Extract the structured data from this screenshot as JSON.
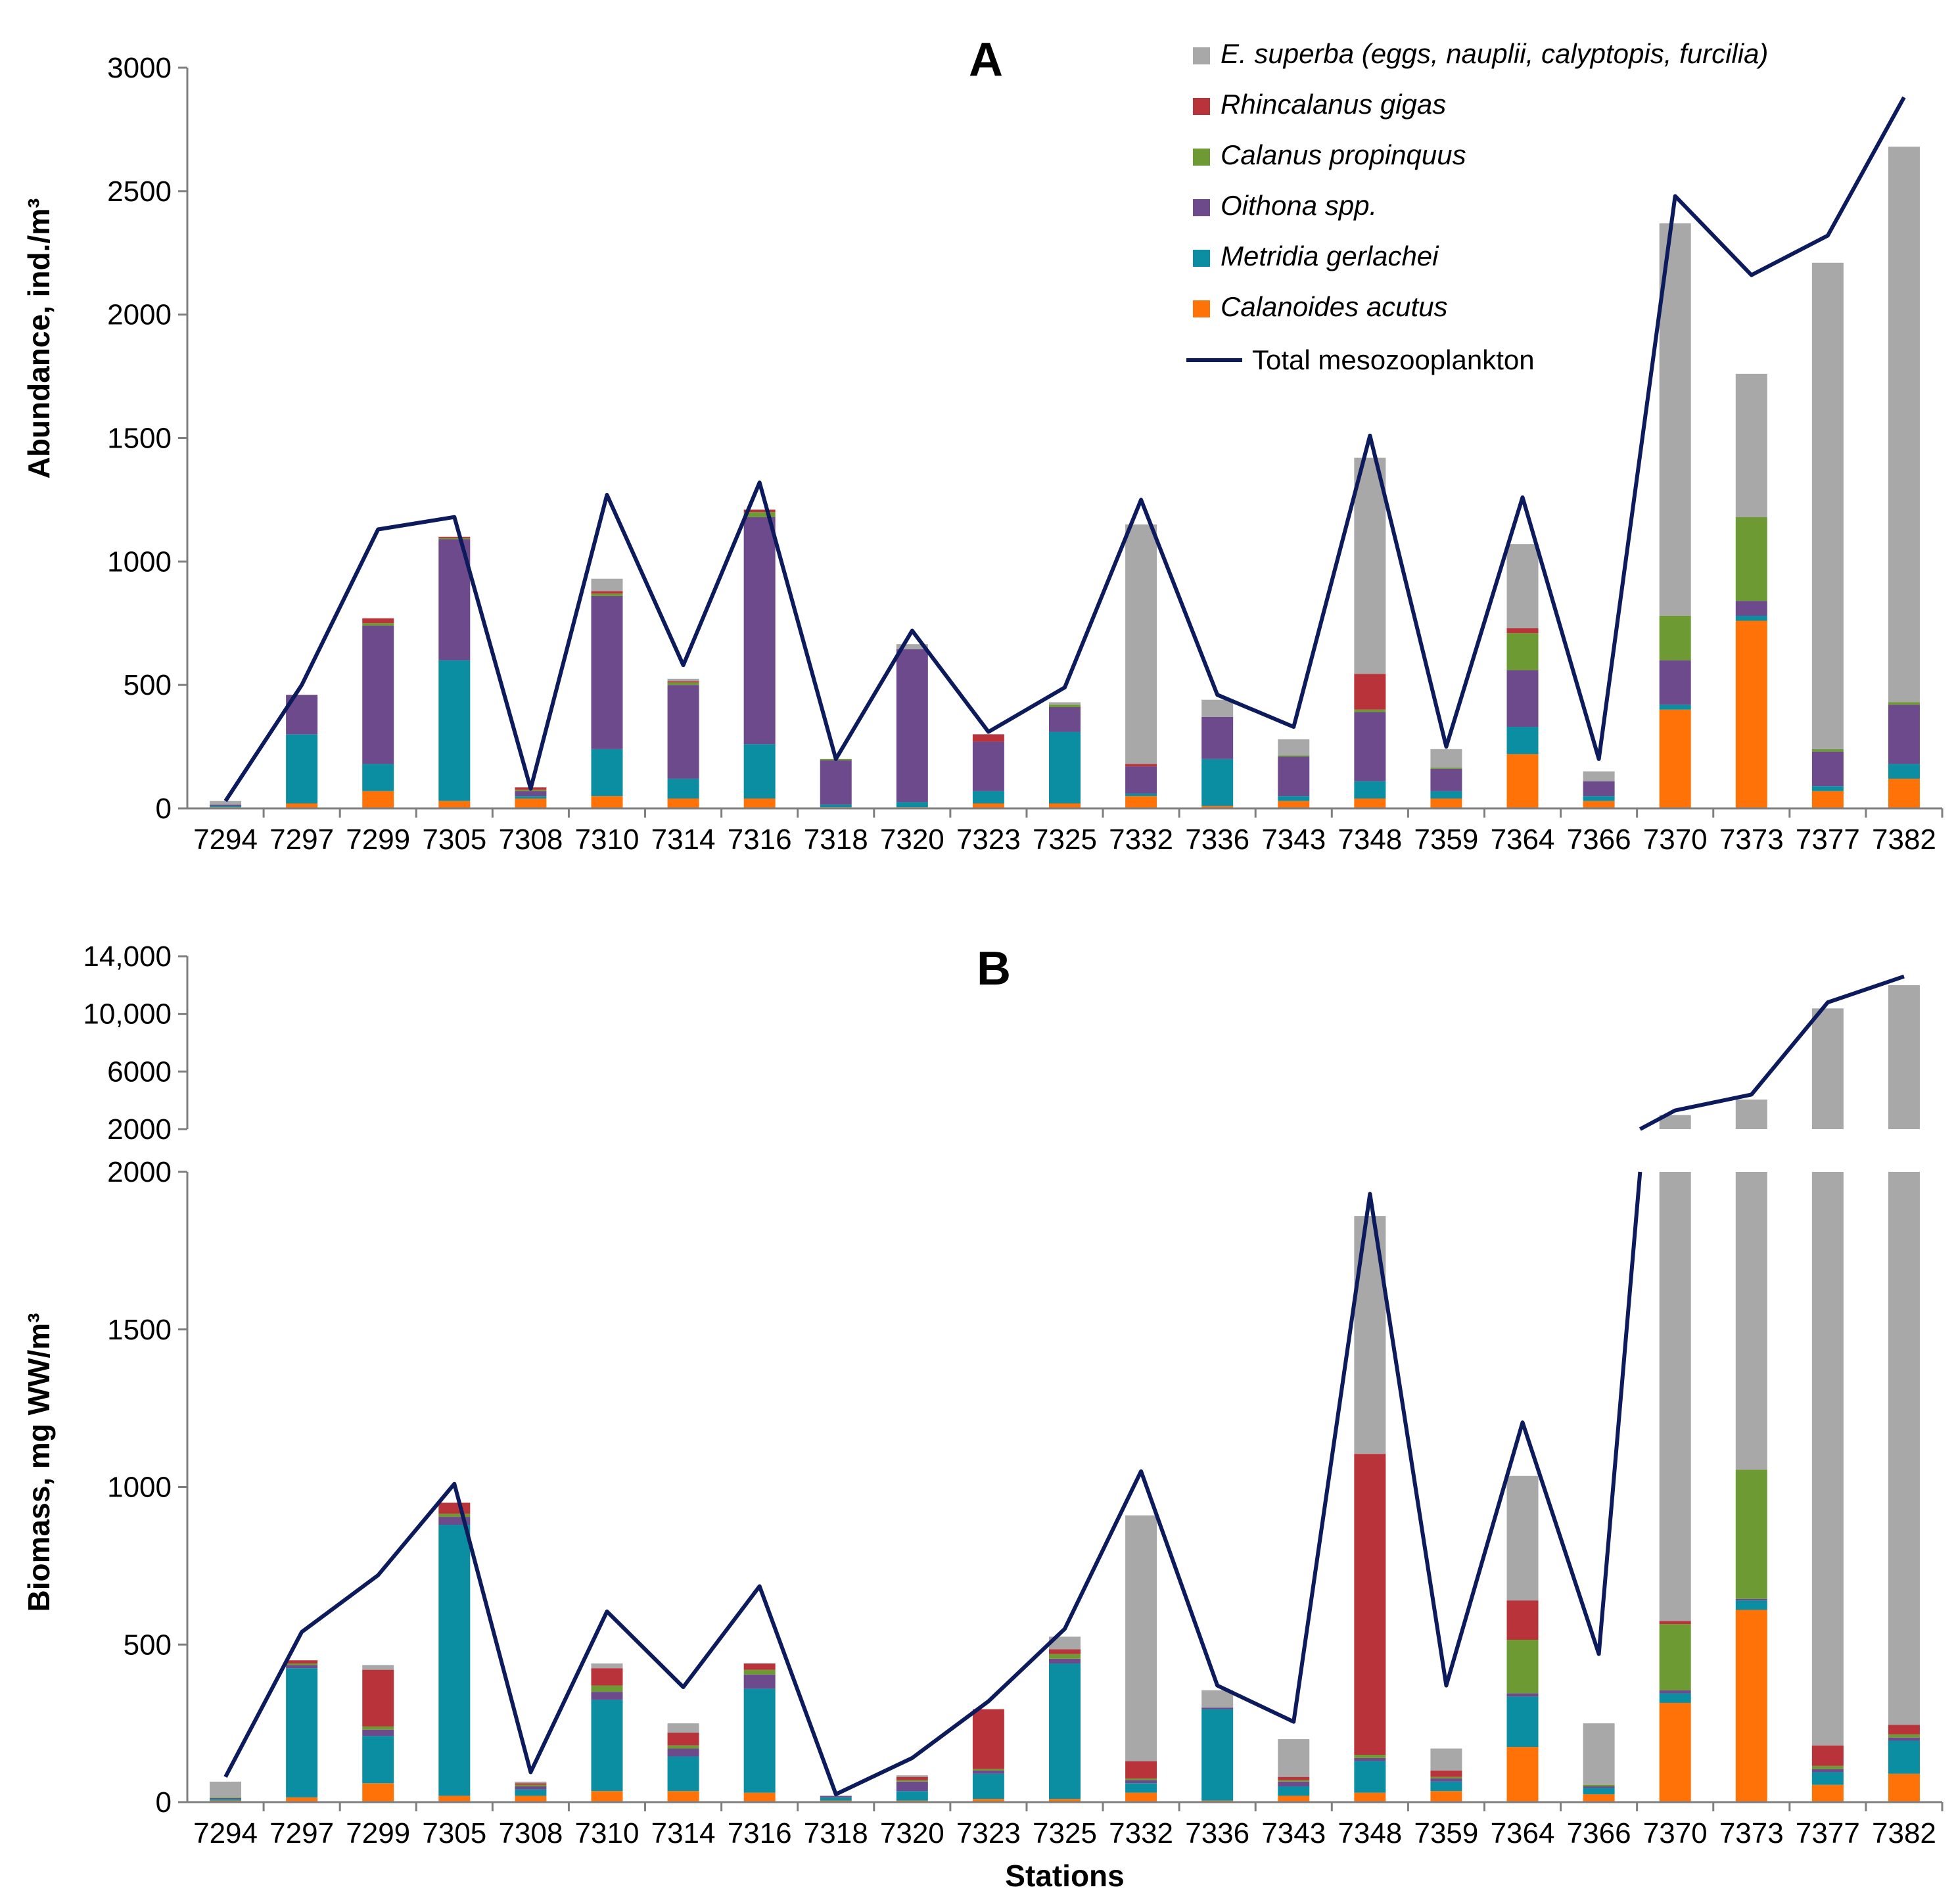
{
  "chart_data": [
    {
      "type": "bar",
      "stacked": true,
      "title": "A",
      "xlabel": "",
      "ylabel": "Abundance, ind./m³",
      "ylim": [
        0,
        3000
      ],
      "yticks": [
        "0",
        "500",
        "1000",
        "1500",
        "2000",
        "2500",
        "3000"
      ],
      "categories": [
        "7294",
        "7297",
        "7299",
        "7305",
        "7308",
        "7310",
        "7314",
        "7316",
        "7318",
        "7320",
        "7323",
        "7325",
        "7332",
        "7336",
        "7343",
        "7348",
        "7359",
        "7364",
        "7366",
        "7370",
        "7373",
        "7377",
        "7382"
      ],
      "series": [
        {
          "name": "Calanoides acutus",
          "values": [
            5,
            20,
            70,
            30,
            40,
            50,
            40,
            40,
            5,
            5,
            20,
            20,
            50,
            10,
            30,
            40,
            40,
            220,
            30,
            400,
            760,
            70,
            120
          ]
        },
        {
          "name": "Metridia gerlachei",
          "values": [
            5,
            280,
            110,
            570,
            10,
            190,
            80,
            220,
            10,
            20,
            50,
            290,
            10,
            190,
            20,
            70,
            30,
            110,
            20,
            20,
            20,
            20,
            60
          ]
        },
        {
          "name": "Oithona spp.",
          "values": [
            5,
            160,
            560,
            490,
            20,
            620,
            380,
            920,
            180,
            620,
            200,
            100,
            110,
            170,
            160,
            280,
            90,
            230,
            60,
            180,
            60,
            140,
            240
          ]
        },
        {
          "name": "Calanus propinquus",
          "values": [
            0,
            0,
            10,
            5,
            5,
            10,
            10,
            20,
            5,
            0,
            0,
            10,
            0,
            0,
            5,
            10,
            5,
            150,
            0,
            180,
            340,
            10,
            10
          ]
        },
        {
          "name": "Rhincalanus gigas",
          "values": [
            0,
            0,
            20,
            5,
            10,
            10,
            5,
            10,
            0,
            0,
            30,
            0,
            10,
            0,
            0,
            145,
            0,
            20,
            0,
            0,
            0,
            0,
            0
          ]
        },
        {
          "name": "E. superba (eggs, nauplii, calyptopis, furcilia)",
          "values": [
            15,
            0,
            0,
            0,
            0,
            50,
            10,
            0,
            0,
            20,
            0,
            10,
            970,
            70,
            65,
            875,
            75,
            340,
            40,
            1590,
            580,
            1970,
            2250
          ]
        }
      ],
      "line": {
        "name": "Total mesozooplankton",
        "values": [
          30,
          500,
          1130,
          1180,
          80,
          1270,
          580,
          1320,
          200,
          720,
          310,
          490,
          1250,
          460,
          330,
          1510,
          250,
          1260,
          200,
          2480,
          2160,
          2320,
          2880
        ]
      },
      "legend": {
        "position": "top-right",
        "entries": [
          "E. superba (eggs, nauplii, calyptopis, furcilia)",
          "Rhincalanus gigas",
          "Calanus propinquus",
          "Oithona spp.",
          "Metridia gerlachei",
          "Calanoides acutus",
          "Total mesozooplankton"
        ]
      }
    },
    {
      "type": "bar",
      "stacked": true,
      "broken_axis": true,
      "title": "B",
      "xlabel": "Stations",
      "ylabel": "Biomass, mg WW/m³",
      "ylim_lower": [
        0,
        2000
      ],
      "ylim_upper": [
        2000,
        14000
      ],
      "yticks_lower": [
        "0",
        "500",
        "1000",
        "1500",
        "2000"
      ],
      "yticks_upper": [
        "2000",
        "6000",
        "10,000",
        "14,000"
      ],
      "categories": [
        "7294",
        "7297",
        "7299",
        "7305",
        "7308",
        "7310",
        "7314",
        "7316",
        "7318",
        "7320",
        "7323",
        "7325",
        "7332",
        "7336",
        "7343",
        "7348",
        "7359",
        "7364",
        "7366",
        "7370",
        "7373",
        "7377",
        "7382"
      ],
      "series": [
        {
          "name": "Calanoides acutus",
          "values": [
            5,
            15,
            60,
            20,
            20,
            35,
            35,
            30,
            5,
            5,
            10,
            10,
            30,
            5,
            20,
            30,
            35,
            175,
            25,
            315,
            610,
            55,
            90
          ]
        },
        {
          "name": "Metridia gerlachei",
          "values": [
            5,
            410,
            150,
            860,
            20,
            290,
            110,
            330,
            10,
            30,
            80,
            430,
            30,
            290,
            30,
            100,
            30,
            160,
            20,
            30,
            30,
            40,
            105
          ]
        },
        {
          "name": "Oithona spp.",
          "values": [
            3,
            10,
            20,
            25,
            10,
            25,
            25,
            45,
            5,
            30,
            10,
            15,
            10,
            5,
            15,
            10,
            10,
            10,
            5,
            10,
            5,
            10,
            10
          ]
        },
        {
          "name": "Calanus propinquus",
          "values": [
            2,
            5,
            10,
            10,
            5,
            20,
            10,
            15,
            0,
            5,
            5,
            15,
            5,
            0,
            5,
            10,
            5,
            170,
            5,
            210,
            410,
            10,
            10
          ]
        },
        {
          "name": "Rhincalanus gigas",
          "values": [
            0,
            10,
            180,
            35,
            5,
            55,
            40,
            20,
            0,
            10,
            190,
            15,
            55,
            0,
            10,
            955,
            20,
            125,
            0,
            10,
            0,
            65,
            30
          ]
        },
        {
          "name": "E. superba (eggs, nauplii, calyptopis, furcilia)",
          "values": [
            50,
            0,
            15,
            0,
            5,
            15,
            30,
            0,
            0,
            5,
            0,
            40,
            780,
            55,
            120,
            755,
            70,
            395,
            195,
            2400,
            3000,
            10200,
            11750
          ]
        }
      ],
      "line": {
        "name": "Total mesozooplankton",
        "values": [
          80,
          540,
          720,
          1010,
          95,
          605,
          365,
          685,
          25,
          140,
          320,
          550,
          1050,
          370,
          255,
          1930,
          370,
          1205,
          470,
          3300,
          4400,
          10800,
          12600
        ]
      }
    }
  ]
}
